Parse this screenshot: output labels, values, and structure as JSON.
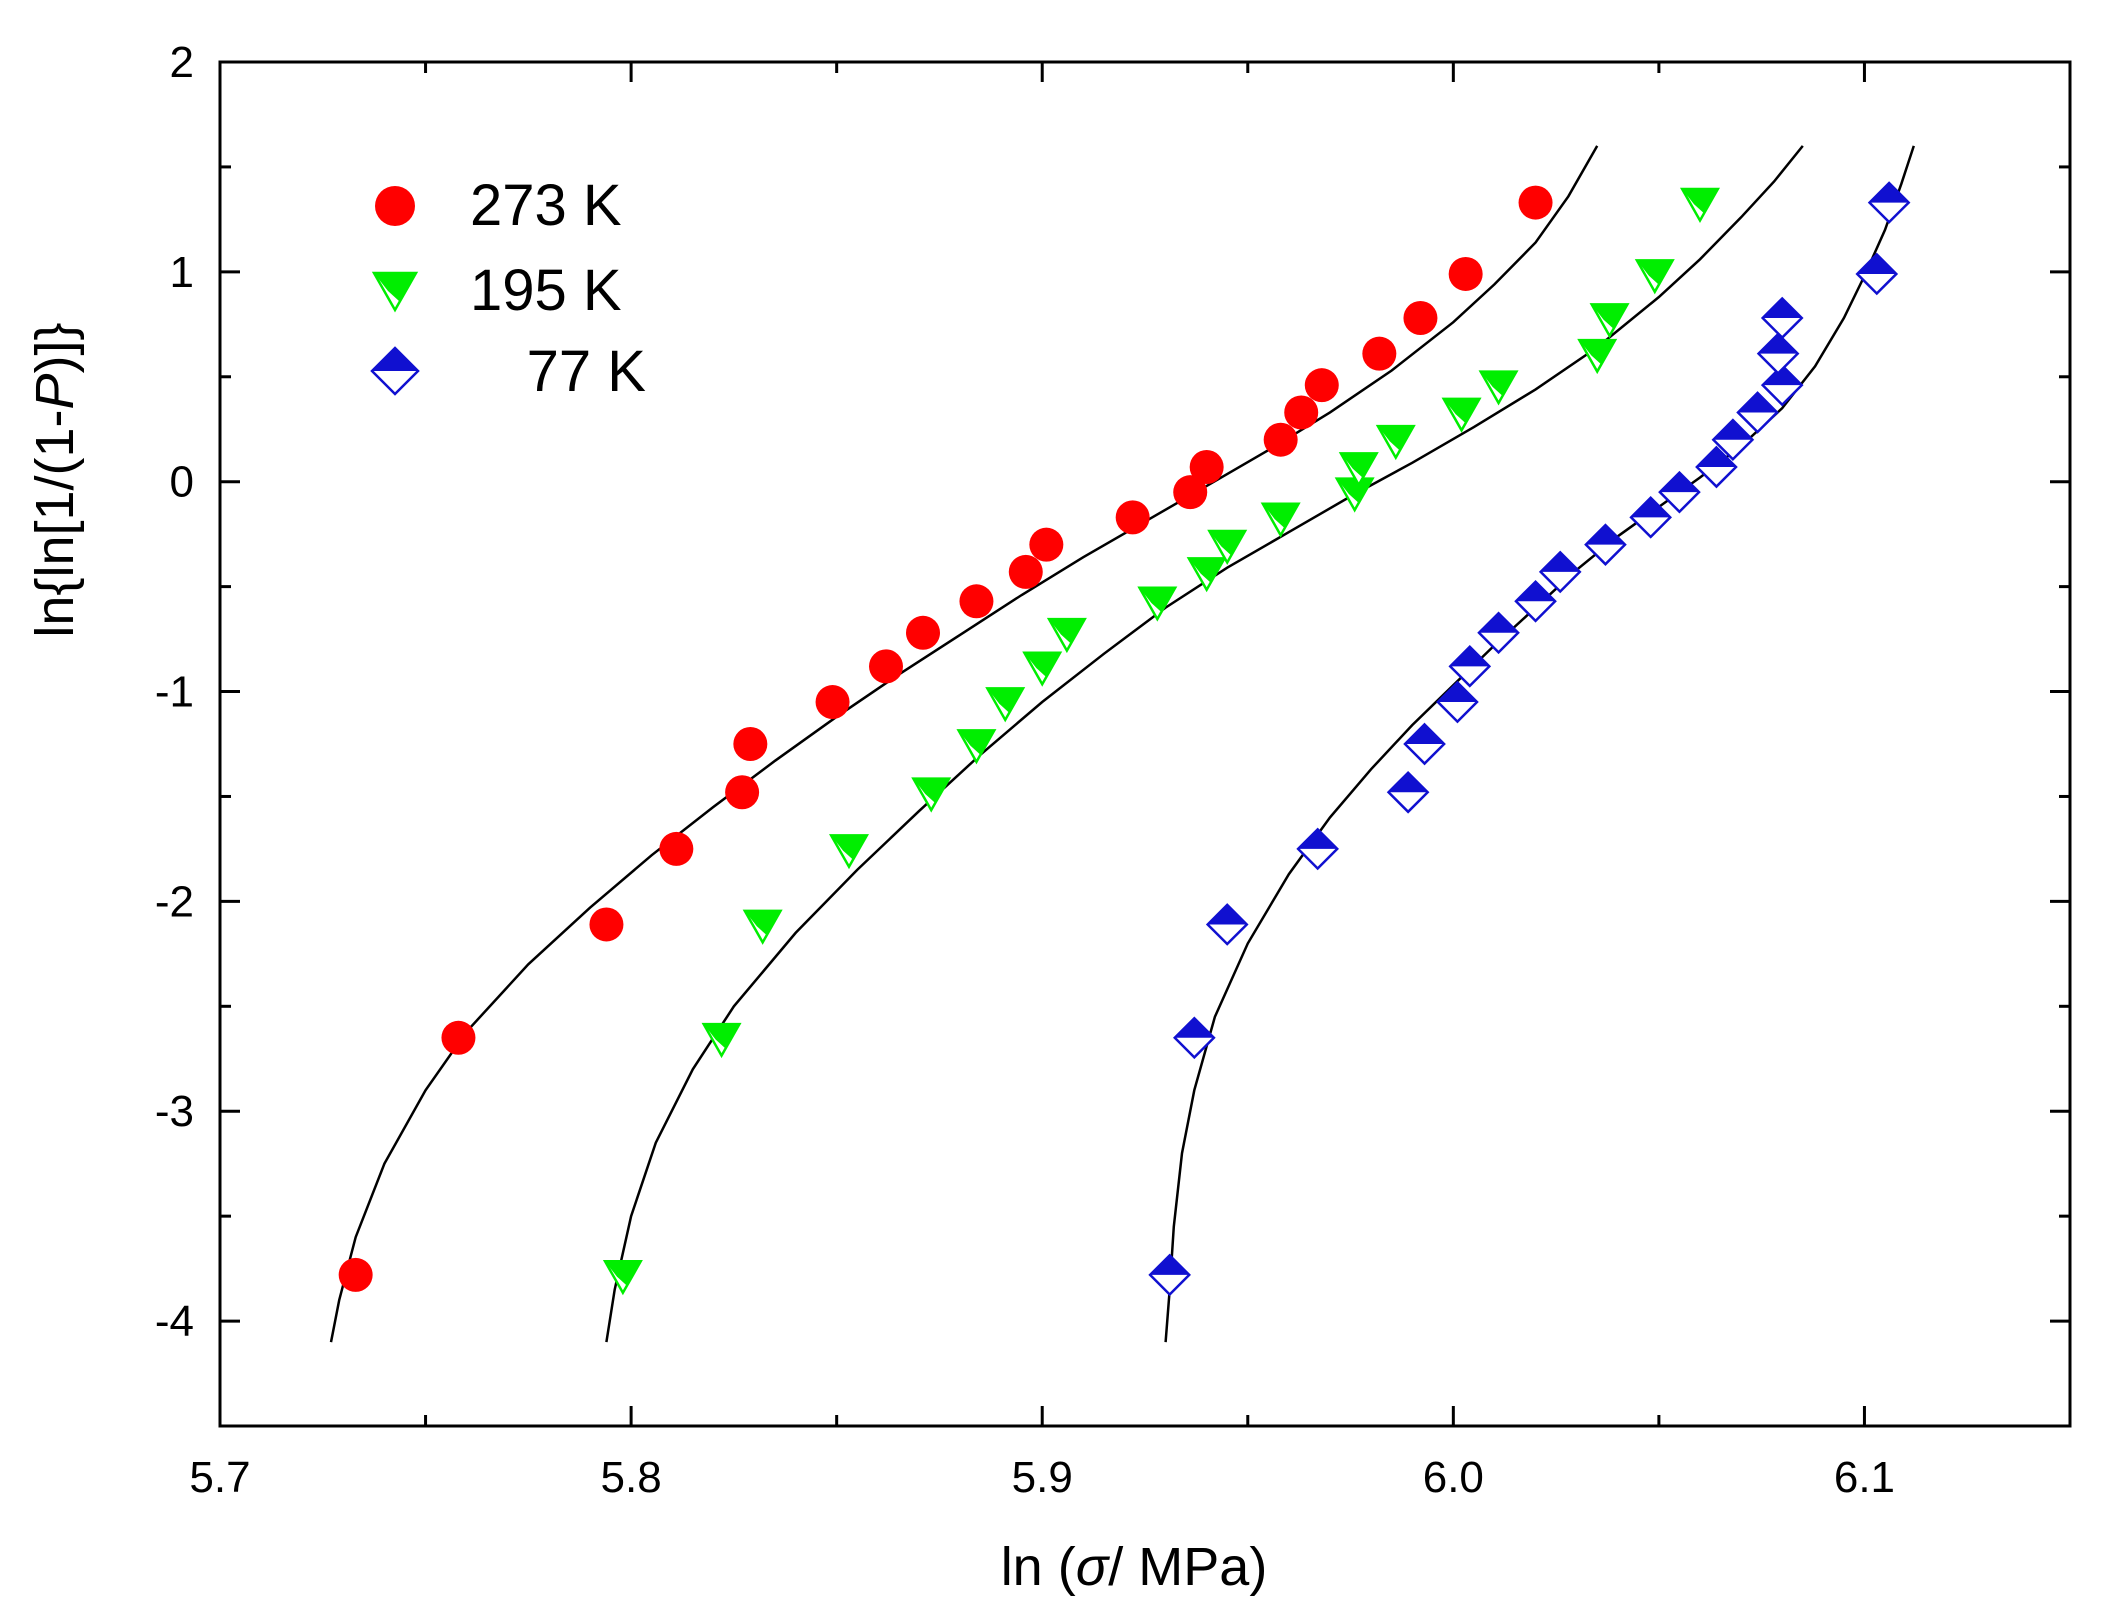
{
  "chart_data": {
    "type": "scatter",
    "title": "",
    "xlabel": "ln (σ/ MPa)",
    "xlabel_parts": [
      "ln (",
      "σ",
      "/ MPa)"
    ],
    "ylabel": "ln{ln[1/(1-P)]}",
    "ylabel_parts": [
      "ln{ln[1/(1-",
      "P",
      ")]}"
    ],
    "xlim": [
      5.7,
      6.15
    ],
    "ylim": [
      -4.5,
      2
    ],
    "x_ticks": [
      5.7,
      5.8,
      5.9,
      6.0,
      6.1
    ],
    "x_tick_labels": [
      "5.7",
      "5.8",
      "5.9",
      "6.0",
      "6.1"
    ],
    "y_ticks": [
      -4,
      -3,
      -2,
      -1,
      0,
      1,
      2
    ],
    "y_tick_labels": [
      "-4",
      "-3",
      "-2",
      "-1",
      "0",
      "1",
      "2"
    ],
    "grid": false,
    "legend_position": "top-left",
    "series": [
      {
        "name": "273 K",
        "marker": "circle",
        "color": "#ff0000",
        "x": [
          5.733,
          5.758,
          5.794,
          5.811,
          5.827,
          5.829,
          5.849,
          5.862,
          5.871,
          5.884,
          5.896,
          5.901,
          5.922,
          5.936,
          5.94,
          5.958,
          5.963,
          5.968,
          5.982,
          5.992,
          6.003,
          6.02
        ],
        "y": [
          -3.78,
          -2.65,
          -2.11,
          -1.75,
          -1.48,
          -1.25,
          -1.05,
          -0.88,
          -0.72,
          -0.57,
          -0.43,
          -0.3,
          -0.17,
          -0.05,
          0.07,
          0.2,
          0.33,
          0.46,
          0.61,
          0.78,
          0.99,
          1.33
        ]
      },
      {
        "name": "195 K",
        "marker": "triangle-down",
        "color": "#00ee00",
        "x": [
          5.798,
          5.822,
          5.832,
          5.853,
          5.873,
          5.884,
          5.891,
          5.9,
          5.906,
          5.928,
          5.94,
          5.945,
          5.958,
          5.976,
          5.977,
          5.986,
          6.002,
          6.011,
          6.035,
          6.038,
          6.049,
          6.06
        ],
        "y": [
          -3.78,
          -2.65,
          -2.11,
          -1.75,
          -1.48,
          -1.25,
          -1.05,
          -0.88,
          -0.72,
          -0.57,
          -0.43,
          -0.3,
          -0.17,
          -0.05,
          0.07,
          0.2,
          0.33,
          0.46,
          0.61,
          0.78,
          0.99,
          1.33
        ]
      },
      {
        "name": "77 K",
        "marker": "half-filled-diamond",
        "color": "#1010d0",
        "x": [
          5.931,
          5.937,
          5.945,
          5.967,
          5.989,
          5.993,
          6.001,
          6.004,
          6.011,
          6.02,
          6.026,
          6.037,
          6.048,
          6.055,
          6.064,
          6.068,
          6.074,
          6.08,
          6.079,
          6.08,
          6.103,
          6.106
        ],
        "y": [
          -3.78,
          -2.65,
          -2.11,
          -1.75,
          -1.48,
          -1.25,
          -1.05,
          -0.88,
          -0.72,
          -0.57,
          -0.43,
          -0.3,
          -0.17,
          -0.05,
          0.07,
          0.2,
          0.33,
          0.46,
          0.61,
          0.78,
          0.99,
          1.33
        ]
      }
    ],
    "fit_curves": [
      {
        "name": "273 K fit",
        "color": "#000000",
        "x": [
          5.727,
          5.729,
          5.733,
          5.74,
          5.75,
          5.76,
          5.775,
          5.79,
          5.805,
          5.82,
          5.835,
          5.85,
          5.865,
          5.88,
          5.895,
          5.91,
          5.925,
          5.94,
          5.955,
          5.97,
          5.985,
          6.0,
          6.01,
          6.02,
          6.028,
          6.035
        ],
        "y": [
          -4.1,
          -3.9,
          -3.6,
          -3.25,
          -2.9,
          -2.62,
          -2.3,
          -2.03,
          -1.78,
          -1.55,
          -1.33,
          -1.12,
          -0.92,
          -0.73,
          -0.54,
          -0.36,
          -0.19,
          -0.02,
          0.15,
          0.33,
          0.53,
          0.76,
          0.94,
          1.14,
          1.36,
          1.6
        ]
      },
      {
        "name": "195 K fit",
        "color": "#000000",
        "x": [
          5.794,
          5.796,
          5.8,
          5.806,
          5.815,
          5.825,
          5.84,
          5.855,
          5.87,
          5.885,
          5.9,
          5.915,
          5.93,
          5.945,
          5.96,
          5.975,
          5.99,
          6.005,
          6.02,
          6.035,
          6.05,
          6.06,
          6.07,
          6.078,
          6.085
        ],
        "y": [
          -4.1,
          -3.85,
          -3.5,
          -3.15,
          -2.8,
          -2.5,
          -2.15,
          -1.85,
          -1.57,
          -1.3,
          -1.05,
          -0.82,
          -0.6,
          -0.41,
          -0.24,
          -0.07,
          0.09,
          0.26,
          0.44,
          0.64,
          0.88,
          1.06,
          1.26,
          1.43,
          1.6
        ]
      },
      {
        "name": "77 K fit",
        "color": "#000000",
        "x": [
          5.93,
          5.931,
          5.932,
          5.934,
          5.937,
          5.942,
          5.95,
          5.96,
          5.97,
          5.98,
          5.99,
          6.0,
          6.01,
          6.02,
          6.03,
          6.04,
          6.05,
          6.06,
          6.07,
          6.08,
          6.088,
          6.095,
          6.1,
          6.105,
          6.109,
          6.112
        ],
        "y": [
          -4.1,
          -3.85,
          -3.55,
          -3.2,
          -2.9,
          -2.55,
          -2.2,
          -1.87,
          -1.6,
          -1.37,
          -1.16,
          -0.97,
          -0.78,
          -0.6,
          -0.42,
          -0.26,
          -0.12,
          0.02,
          0.17,
          0.35,
          0.55,
          0.78,
          0.98,
          1.2,
          1.42,
          1.6
        ]
      }
    ]
  }
}
